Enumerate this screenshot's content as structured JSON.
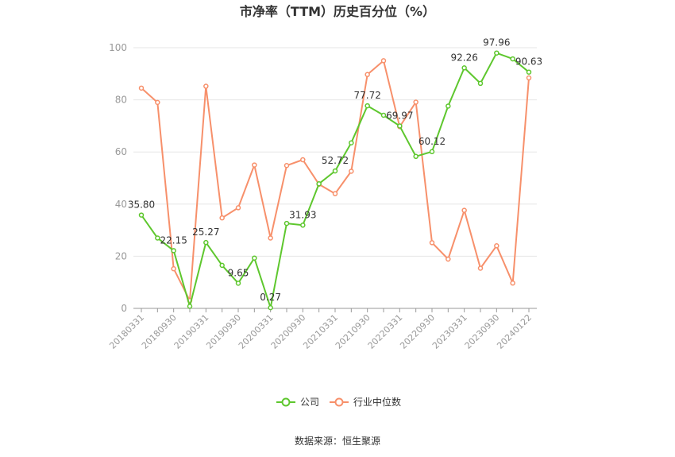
{
  "chart_data": {
    "type": "line",
    "title": "市净率（TTM）历史百分位（%）",
    "xlabel": "",
    "ylabel": "",
    "ylim": [
      0,
      100
    ],
    "y_ticks": [
      "0",
      "20",
      "40",
      "60",
      "80",
      "100"
    ],
    "x_tick_labels": [
      "20180331",
      "20180930",
      "20190331",
      "20190930",
      "20200331",
      "20200930",
      "20210331",
      "20210930",
      "20220331",
      "20220930",
      "20230331",
      "20230930",
      "20240122"
    ],
    "categories": [
      "20180331",
      "20180630",
      "20180930",
      "20181231",
      "20190331",
      "20190630",
      "20190930",
      "20191231",
      "20200331",
      "20200630",
      "20200930",
      "20201231",
      "20210331",
      "20210630",
      "20210930",
      "20211231",
      "20220331",
      "20220630",
      "20220930",
      "20221231",
      "20230331",
      "20230630",
      "20230930",
      "20231231",
      "20240122"
    ],
    "grid": true,
    "legend_position": "bottom",
    "series": [
      {
        "name": "公司",
        "color": "#5ec72e",
        "values": [
          35.8,
          27.0,
          22.15,
          0.8,
          25.27,
          16.5,
          9.65,
          19.3,
          0.27,
          32.6,
          31.93,
          47.8,
          52.72,
          63.5,
          77.72,
          74.1,
          69.97,
          58.3,
          60.12,
          77.6,
          92.26,
          86.3,
          97.96,
          95.7,
          90.63
        ]
      },
      {
        "name": "行业中位数",
        "color": "#f7906b",
        "values": [
          84.5,
          79.0,
          15.2,
          3.0,
          85.2,
          34.7,
          38.6,
          55.0,
          27.0,
          54.8,
          57.0,
          47.6,
          44.0,
          52.6,
          89.7,
          95.0,
          69.7,
          79.1,
          25.2,
          18.9,
          37.6,
          15.4,
          24.0,
          9.7,
          88.4
        ]
      }
    ],
    "data_labels": [
      {
        "series": 0,
        "index": 0,
        "text": "35.80"
      },
      {
        "series": 0,
        "index": 2,
        "text": "22.15"
      },
      {
        "series": 0,
        "index": 4,
        "text": "25.27"
      },
      {
        "series": 0,
        "index": 6,
        "text": "9.65"
      },
      {
        "series": 0,
        "index": 8,
        "text": "0.27"
      },
      {
        "series": 0,
        "index": 10,
        "text": "31.93"
      },
      {
        "series": 0,
        "index": 12,
        "text": "52.72"
      },
      {
        "series": 0,
        "index": 14,
        "text": "77.72"
      },
      {
        "series": 0,
        "index": 16,
        "text": "69.97"
      },
      {
        "series": 0,
        "index": 18,
        "text": "60.12"
      },
      {
        "series": 0,
        "index": 20,
        "text": "92.26"
      },
      {
        "series": 0,
        "index": 22,
        "text": "97.96"
      },
      {
        "series": 0,
        "index": 24,
        "text": "90.63"
      }
    ]
  },
  "source": "数据来源：恒生聚源"
}
